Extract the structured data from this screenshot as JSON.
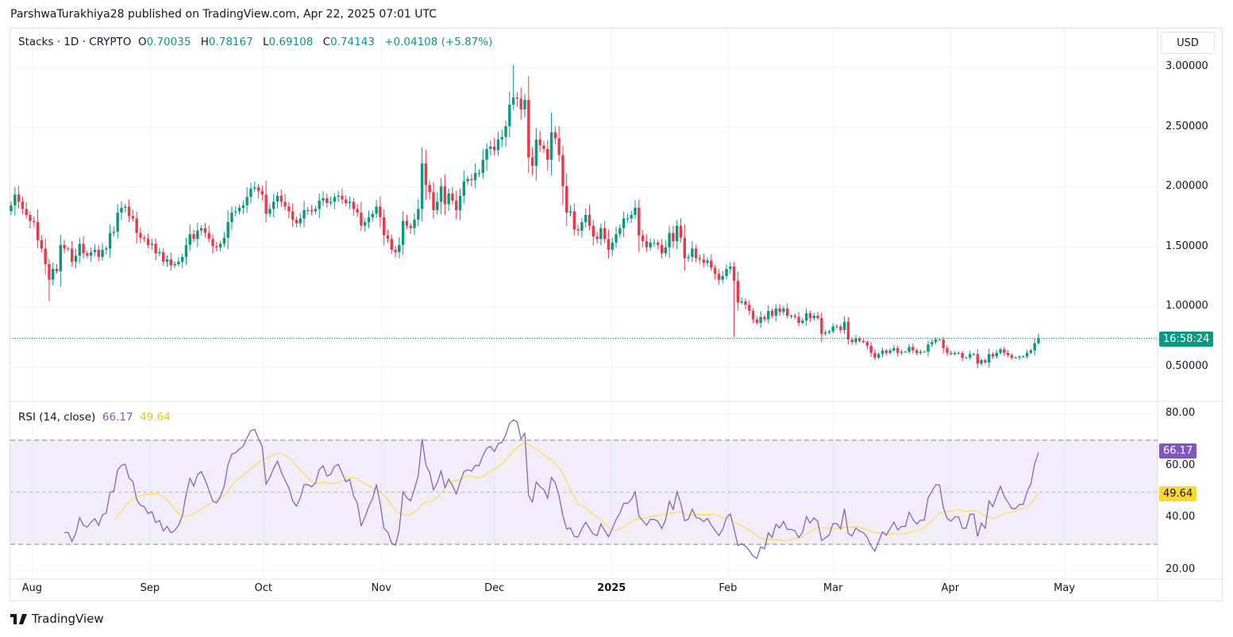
{
  "publisher": "ParshwaTurakhiya28 published on TradingView.com, Apr 22, 2025 07:01 UTC",
  "legend": {
    "symbol": "Stacks · 1D · CRYPTO",
    "o_label": "O",
    "o": "0.70035",
    "h_label": "H",
    "h": "0.78167",
    "l_label": "L",
    "l": "0.69108",
    "c_label": "C",
    "c": "0.74143",
    "change": "+0.04108 (+5.87%)"
  },
  "currency": "USD",
  "countdown": "16:58:24",
  "rsi_legend": {
    "label": "RSI (14, close)",
    "rsi": "66.17",
    "ma": "49.64"
  },
  "logo_text": "TradingView",
  "colors": {
    "up": "#089981",
    "down": "#f23645",
    "rsi": "#7e57c2",
    "rsi_ma": "#fdd835",
    "band": "#7e57c2"
  },
  "chart_data": [
    {
      "type": "candlestick",
      "title": "Stacks · 1D · CRYPTO",
      "ylim": [
        0.3,
        3.1
      ],
      "y_ticks": [
        "3.00000",
        "2.50000",
        "2.00000",
        "1.50000",
        "1.00000",
        "0.50000"
      ],
      "y_tick_values": [
        3.0,
        2.5,
        2.0,
        1.5,
        1.0,
        0.5
      ],
      "x_ticks": [
        {
          "label": "Aug",
          "day": 5.5
        },
        {
          "label": "Sep",
          "day": 36.5
        },
        {
          "label": "Oct",
          "day": 66.3
        },
        {
          "label": "Nov",
          "day": 97.3
        },
        {
          "label": "Dec",
          "day": 127
        },
        {
          "label": "2025",
          "day": 157.8,
          "bold": true
        },
        {
          "label": "Feb",
          "day": 188.4
        },
        {
          "label": "Mar",
          "day": 216
        },
        {
          "label": "Apr",
          "day": 246.8
        },
        {
          "label": "May",
          "day": 276.8
        }
      ],
      "last_bar": {
        "open": 0.70035,
        "high": 0.78167,
        "low": 0.69108,
        "close": 0.74143
      },
      "wick_overrides": [
        {
          "index": 10,
          "low": 1.05
        },
        {
          "index": 132,
          "high": 3.02
        },
        {
          "index": 190,
          "low": 0.75
        }
      ],
      "first_open": 1.8,
      "closes": [
        1.85,
        1.94,
        1.88,
        1.82,
        1.77,
        1.72,
        1.71,
        1.56,
        1.49,
        1.36,
        1.23,
        1.32,
        1.3,
        1.52,
        1.49,
        1.49,
        1.38,
        1.43,
        1.53,
        1.45,
        1.43,
        1.46,
        1.48,
        1.42,
        1.48,
        1.49,
        1.62,
        1.63,
        1.79,
        1.83,
        1.84,
        1.76,
        1.74,
        1.62,
        1.58,
        1.57,
        1.52,
        1.53,
        1.45,
        1.46,
        1.38,
        1.4,
        1.35,
        1.36,
        1.38,
        1.42,
        1.52,
        1.61,
        1.57,
        1.64,
        1.66,
        1.62,
        1.57,
        1.51,
        1.5,
        1.53,
        1.58,
        1.71,
        1.79,
        1.8,
        1.83,
        1.85,
        1.92,
        1.99,
        2.0,
        1.97,
        1.94,
        1.78,
        1.82,
        1.88,
        1.93,
        1.88,
        1.84,
        1.8,
        1.73,
        1.7,
        1.74,
        1.81,
        1.81,
        1.8,
        1.82,
        1.89,
        1.91,
        1.87,
        1.88,
        1.92,
        1.93,
        1.9,
        1.87,
        1.88,
        1.82,
        1.79,
        1.68,
        1.71,
        1.75,
        1.78,
        1.84,
        1.75,
        1.6,
        1.57,
        1.48,
        1.46,
        1.52,
        1.72,
        1.68,
        1.66,
        1.73,
        1.82,
        2.2,
        2.02,
        1.96,
        1.81,
        1.88,
        2.01,
        1.86,
        1.95,
        1.89,
        1.81,
        1.93,
        2.05,
        2.07,
        2.06,
        2.12,
        2.12,
        2.23,
        2.32,
        2.34,
        2.31,
        2.4,
        2.42,
        2.51,
        2.69,
        2.75,
        2.74,
        2.65,
        2.73,
        2.25,
        2.18,
        2.4,
        2.35,
        2.32,
        2.23,
        2.46,
        2.41,
        2.27,
        2.01,
        1.79,
        1.8,
        1.65,
        1.64,
        1.71,
        1.77,
        1.68,
        1.59,
        1.57,
        1.66,
        1.57,
        1.48,
        1.54,
        1.61,
        1.66,
        1.74,
        1.74,
        1.77,
        1.83,
        1.6,
        1.55,
        1.5,
        1.54,
        1.54,
        1.52,
        1.45,
        1.5,
        1.62,
        1.55,
        1.68,
        1.58,
        1.41,
        1.42,
        1.49,
        1.41,
        1.4,
        1.37,
        1.39,
        1.33,
        1.28,
        1.23,
        1.26,
        1.32,
        1.34,
        1.22,
        1.04,
        1.05,
        1.02,
        0.97,
        0.9,
        0.87,
        0.92,
        0.9,
        0.97,
        0.93,
        0.99,
        0.96,
        0.99,
        0.93,
        0.93,
        0.92,
        0.87,
        0.89,
        0.95,
        0.91,
        0.93,
        0.91,
        0.78,
        0.79,
        0.8,
        0.84,
        0.84,
        0.81,
        0.88,
        0.73,
        0.71,
        0.74,
        0.72,
        0.71,
        0.68,
        0.62,
        0.58,
        0.61,
        0.64,
        0.62,
        0.64,
        0.66,
        0.62,
        0.63,
        0.63,
        0.67,
        0.64,
        0.62,
        0.63,
        0.63,
        0.69,
        0.71,
        0.73,
        0.73,
        0.66,
        0.62,
        0.61,
        0.62,
        0.62,
        0.58,
        0.58,
        0.61,
        0.61,
        0.53,
        0.56,
        0.54,
        0.61,
        0.59,
        0.62,
        0.65,
        0.62,
        0.6,
        0.58,
        0.58,
        0.59,
        0.59,
        0.62,
        0.64,
        0.7,
        0.74143
      ]
    },
    {
      "type": "line",
      "title": "RSI (14, close)",
      "series": [
        {
          "name": "RSI",
          "period": 14,
          "last": 66.17
        },
        {
          "name": "RSI-based MA",
          "period": 14,
          "last": 49.64
        }
      ],
      "ylim": [
        15,
        85
      ],
      "y_ticks": [
        "80.00",
        "60.00",
        "40.00",
        "20.00"
      ],
      "y_tick_values": [
        80,
        60,
        40,
        20
      ],
      "bands": {
        "upper": 70,
        "middle": 50,
        "lower": 30
      }
    }
  ]
}
